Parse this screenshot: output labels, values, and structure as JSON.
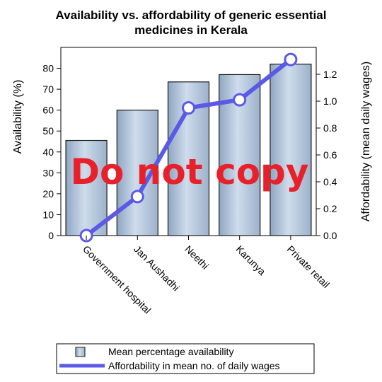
{
  "chart_data": {
    "type": "bar+line",
    "title_lines": [
      "Availability vs. affordability of generic essential",
      "medicines in Kerala"
    ],
    "categories": [
      "Government hospital",
      "Jan Aushadhi",
      "Neethi",
      "Karunya",
      "Private retail"
    ],
    "bar_series": {
      "name": "Mean percentage availability",
      "values": [
        45.5,
        60,
        73.5,
        77,
        82
      ],
      "color": "#b8cce0"
    },
    "line_series": {
      "name": "Affordability in mean no. of daily wages",
      "values": [
        0.0,
        0.29,
        0.95,
        1.01,
        1.31
      ],
      "color": "#5a5ae6"
    },
    "ylabel_left": "Availability (%)",
    "ylabel_right": "Affordability (mean daily wages)",
    "ylim_left": [
      0,
      90
    ],
    "yticks_left": [
      0,
      10,
      20,
      30,
      40,
      50,
      60,
      70,
      80
    ],
    "ylim_right": [
      0,
      1.4
    ],
    "yticks_right": [
      "0.0",
      "0.2",
      "0.4",
      "0.6",
      "0.8",
      "1.0",
      "1.2"
    ],
    "legend_placement": "bottom",
    "watermark": {
      "text": "Do not copy",
      "color": "#e8202a"
    }
  }
}
